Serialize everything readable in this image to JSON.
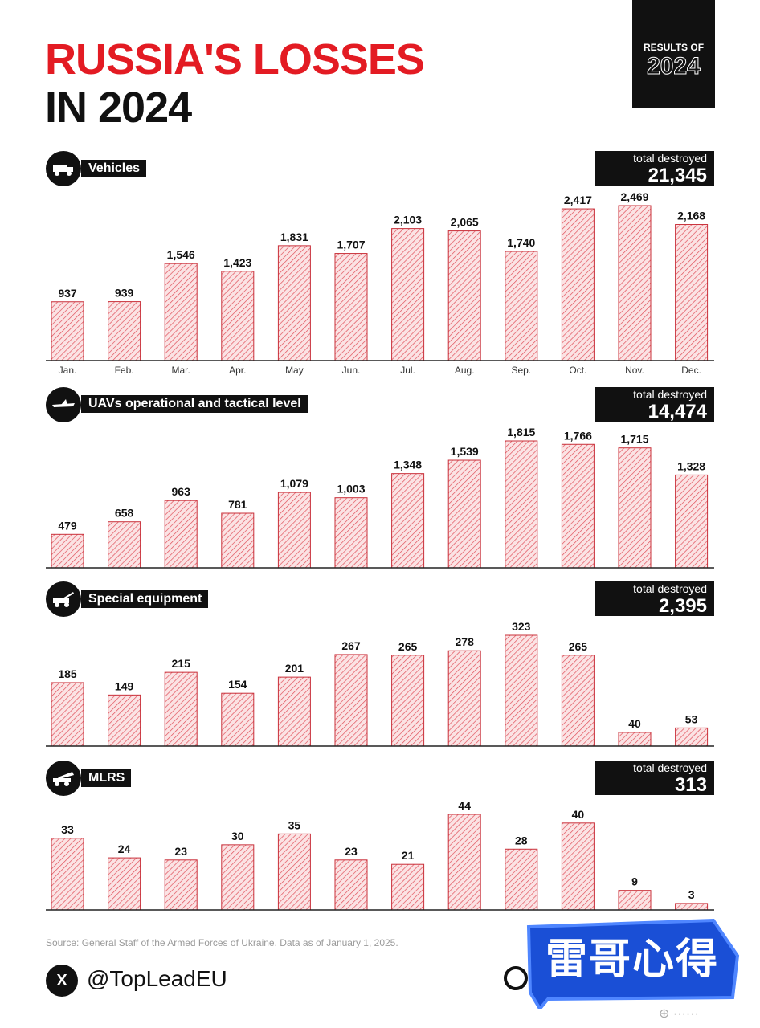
{
  "header": {
    "title_line1": "RUSSIA'S LOSSES",
    "title_line2": "IN 2024",
    "badge_line1": "RESULTS OF",
    "badge_line2": "2024"
  },
  "months": [
    "Jan.",
    "Feb.",
    "Mar.",
    "Apr.",
    "May",
    "Jun.",
    "Jul.",
    "Aug.",
    "Sep.",
    "Oct.",
    "Nov.",
    "Dec."
  ],
  "chart_data": [
    {
      "type": "bar",
      "title": "Vehicles",
      "icon": "truck-icon",
      "total_label": "total destroyed",
      "total": "21,345",
      "categories": [
        "Jan.",
        "Feb.",
        "Mar.",
        "Apr.",
        "May",
        "Jun.",
        "Jul.",
        "Aug.",
        "Sep.",
        "Oct.",
        "Nov.",
        "Dec."
      ],
      "values": [
        937,
        939,
        1546,
        1423,
        1831,
        1707,
        2103,
        2065,
        1740,
        2417,
        2469,
        2168
      ],
      "value_labels": [
        "937",
        "939",
        "1,546",
        "1,423",
        "1,831",
        "1,707",
        "2,103",
        "2,065",
        "1,740",
        "2,417",
        "2,469",
        "2,168"
      ],
      "show_x_labels": true
    },
    {
      "type": "bar",
      "title": "UAVs operational and tactical level",
      "icon": "drone-icon",
      "total_label": "total destroyed",
      "total": "14,474",
      "categories": [
        "Jan.",
        "Feb.",
        "Mar.",
        "Apr.",
        "May",
        "Jun.",
        "Jul.",
        "Aug.",
        "Sep.",
        "Oct.",
        "Nov.",
        "Dec."
      ],
      "values": [
        479,
        658,
        963,
        781,
        1079,
        1003,
        1348,
        1539,
        1815,
        1766,
        1715,
        1328
      ],
      "value_labels": [
        "479",
        "658",
        "963",
        "781",
        "1,079",
        "1,003",
        "1,348",
        "1,539",
        "1,815",
        "1,766",
        "1,715",
        "1,328"
      ],
      "show_x_labels": false
    },
    {
      "type": "bar",
      "title": "Special equipment",
      "icon": "crane-truck-icon",
      "total_label": "total destroyed",
      "total": "2,395",
      "categories": [
        "Jan.",
        "Feb.",
        "Mar.",
        "Apr.",
        "May",
        "Jun.",
        "Jul.",
        "Aug.",
        "Sep.",
        "Oct.",
        "Nov.",
        "Dec."
      ],
      "values": [
        185,
        149,
        215,
        154,
        201,
        267,
        265,
        278,
        323,
        265,
        40,
        53
      ],
      "value_labels": [
        "185",
        "149",
        "215",
        "154",
        "201",
        "267",
        "265",
        "278",
        "323",
        "265",
        "40",
        "53"
      ],
      "show_x_labels": false
    },
    {
      "type": "bar",
      "title": "MLRS",
      "icon": "rocket-launcher-icon",
      "total_label": "total destroyed",
      "total": "313",
      "categories": [
        "Jan.",
        "Feb.",
        "Mar.",
        "Apr.",
        "May",
        "Jun.",
        "Jul.",
        "Aug.",
        "Sep.",
        "Oct.",
        "Nov.",
        "Dec."
      ],
      "values": [
        33,
        24,
        23,
        30,
        35,
        23,
        21,
        44,
        28,
        40,
        9,
        3
      ],
      "value_labels": [
        "33",
        "24",
        "23",
        "30",
        "35",
        "23",
        "21",
        "44",
        "28",
        "40",
        "9",
        "3"
      ],
      "show_x_labels": false
    }
  ],
  "footer": {
    "source": "Source: General Staff of the Armed Forces of Ukraine. Data as of January 1, 2025.",
    "x_logo": "X",
    "handle": "@TopLeadEU"
  },
  "watermark": {
    "text": "雷哥心得",
    "colors": {
      "fill": "#1a4fd6",
      "border": "#4f86ff"
    }
  },
  "colors": {
    "accent": "#e31b23",
    "bar_fill": "#fbe3e4",
    "bar_hatch": "#e0505a",
    "bar_border": "#c9303a",
    "dark": "#111111"
  }
}
